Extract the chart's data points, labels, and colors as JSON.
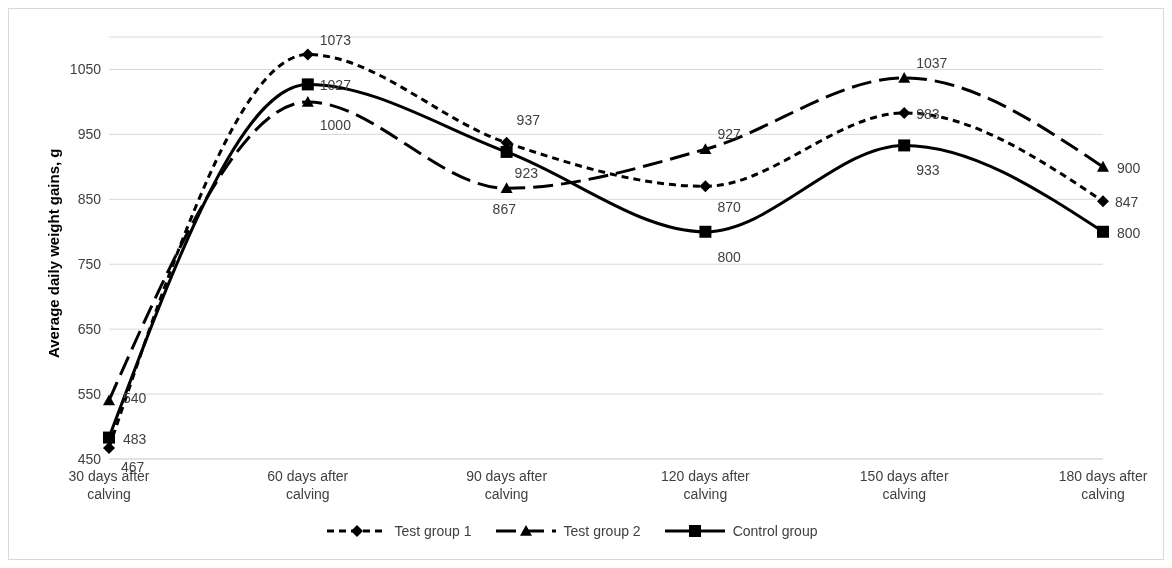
{
  "chart_data": {
    "type": "line",
    "ylabel": "Average daily weight gains, g",
    "categories": [
      "30 days after calving",
      "60 days after calving",
      "90 days after calving",
      "120 days after calving",
      "150 days after calving",
      "180 days after calving"
    ],
    "series": [
      {
        "name": "Test group 1",
        "color": "#000000",
        "values": [
          467,
          1073,
          937,
          870,
          983,
          847
        ],
        "marker": "diamond",
        "line_style": "dashed"
      },
      {
        "name": "Test group 2",
        "color": "#000000",
        "values": [
          540,
          1000,
          867,
          927,
          1037,
          900
        ],
        "marker": "triangle",
        "line_style": "dashed"
      },
      {
        "name": "Control group",
        "color": "#000000",
        "values": [
          483,
          1027,
          923,
          800,
          933,
          800
        ],
        "marker": "square",
        "line_style": "solid"
      }
    ],
    "ylim": [
      450,
      1100
    ],
    "yticks": [
      450,
      550,
      650,
      750,
      850,
      950,
      1050
    ],
    "grid": "y",
    "legend": "bottom",
    "data_labels": true
  }
}
